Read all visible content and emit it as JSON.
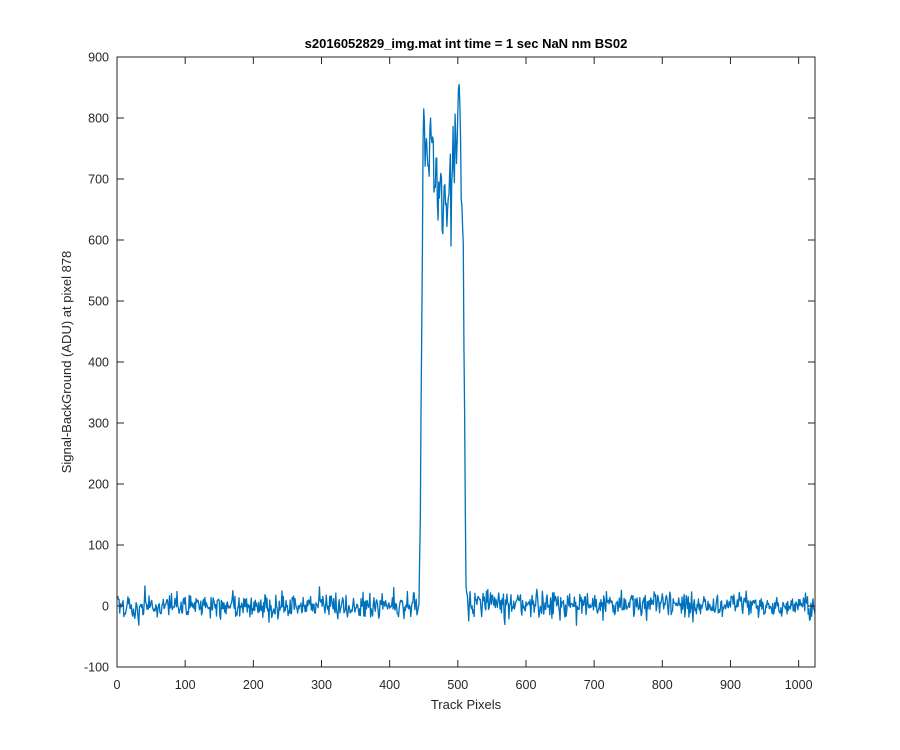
{
  "chart_data": {
    "type": "line",
    "title": "s2016052829_img.mat int time = 1 sec  NaN nm BS02",
    "xlabel": "Track Pixels",
    "ylabel": "Signal-BackGround (ADU) at pixel 878",
    "xlim": [
      0,
      1024
    ],
    "ylim": [
      -100,
      900
    ],
    "xticks": [
      0,
      100,
      200,
      300,
      400,
      500,
      600,
      700,
      800,
      900,
      1000
    ],
    "yticks": [
      -100,
      0,
      100,
      200,
      300,
      400,
      500,
      600,
      700,
      800,
      900
    ],
    "grid": false,
    "legend": "none",
    "line_color": "#0072BD",
    "series": [
      {
        "x_start": 1,
        "x_end": 1024,
        "baseline_noise": 12,
        "keypoints": [
          [
            1,
            0
          ],
          [
            440,
            2
          ],
          [
            443,
            10
          ],
          [
            445,
            150
          ],
          [
            447,
            450
          ],
          [
            449,
            740
          ],
          [
            450,
            815
          ],
          [
            452,
            745
          ],
          [
            455,
            760
          ],
          [
            458,
            730
          ],
          [
            460,
            755
          ],
          [
            465,
            700
          ],
          [
            470,
            665
          ],
          [
            475,
            690
          ],
          [
            480,
            675
          ],
          [
            485,
            660
          ],
          [
            490,
            700
          ],
          [
            495,
            745
          ],
          [
            498,
            765
          ],
          [
            500,
            790
          ],
          [
            502,
            855
          ],
          [
            505,
            700
          ],
          [
            508,
            580
          ],
          [
            510,
            300
          ],
          [
            512,
            40
          ],
          [
            515,
            5
          ],
          [
            1024,
            0
          ]
        ],
        "spikes": [
          [
            450,
            815
          ],
          [
            460,
            800
          ],
          [
            478,
            610
          ],
          [
            490,
            590
          ],
          [
            497,
            765
          ],
          [
            502,
            855
          ]
        ]
      }
    ]
  }
}
